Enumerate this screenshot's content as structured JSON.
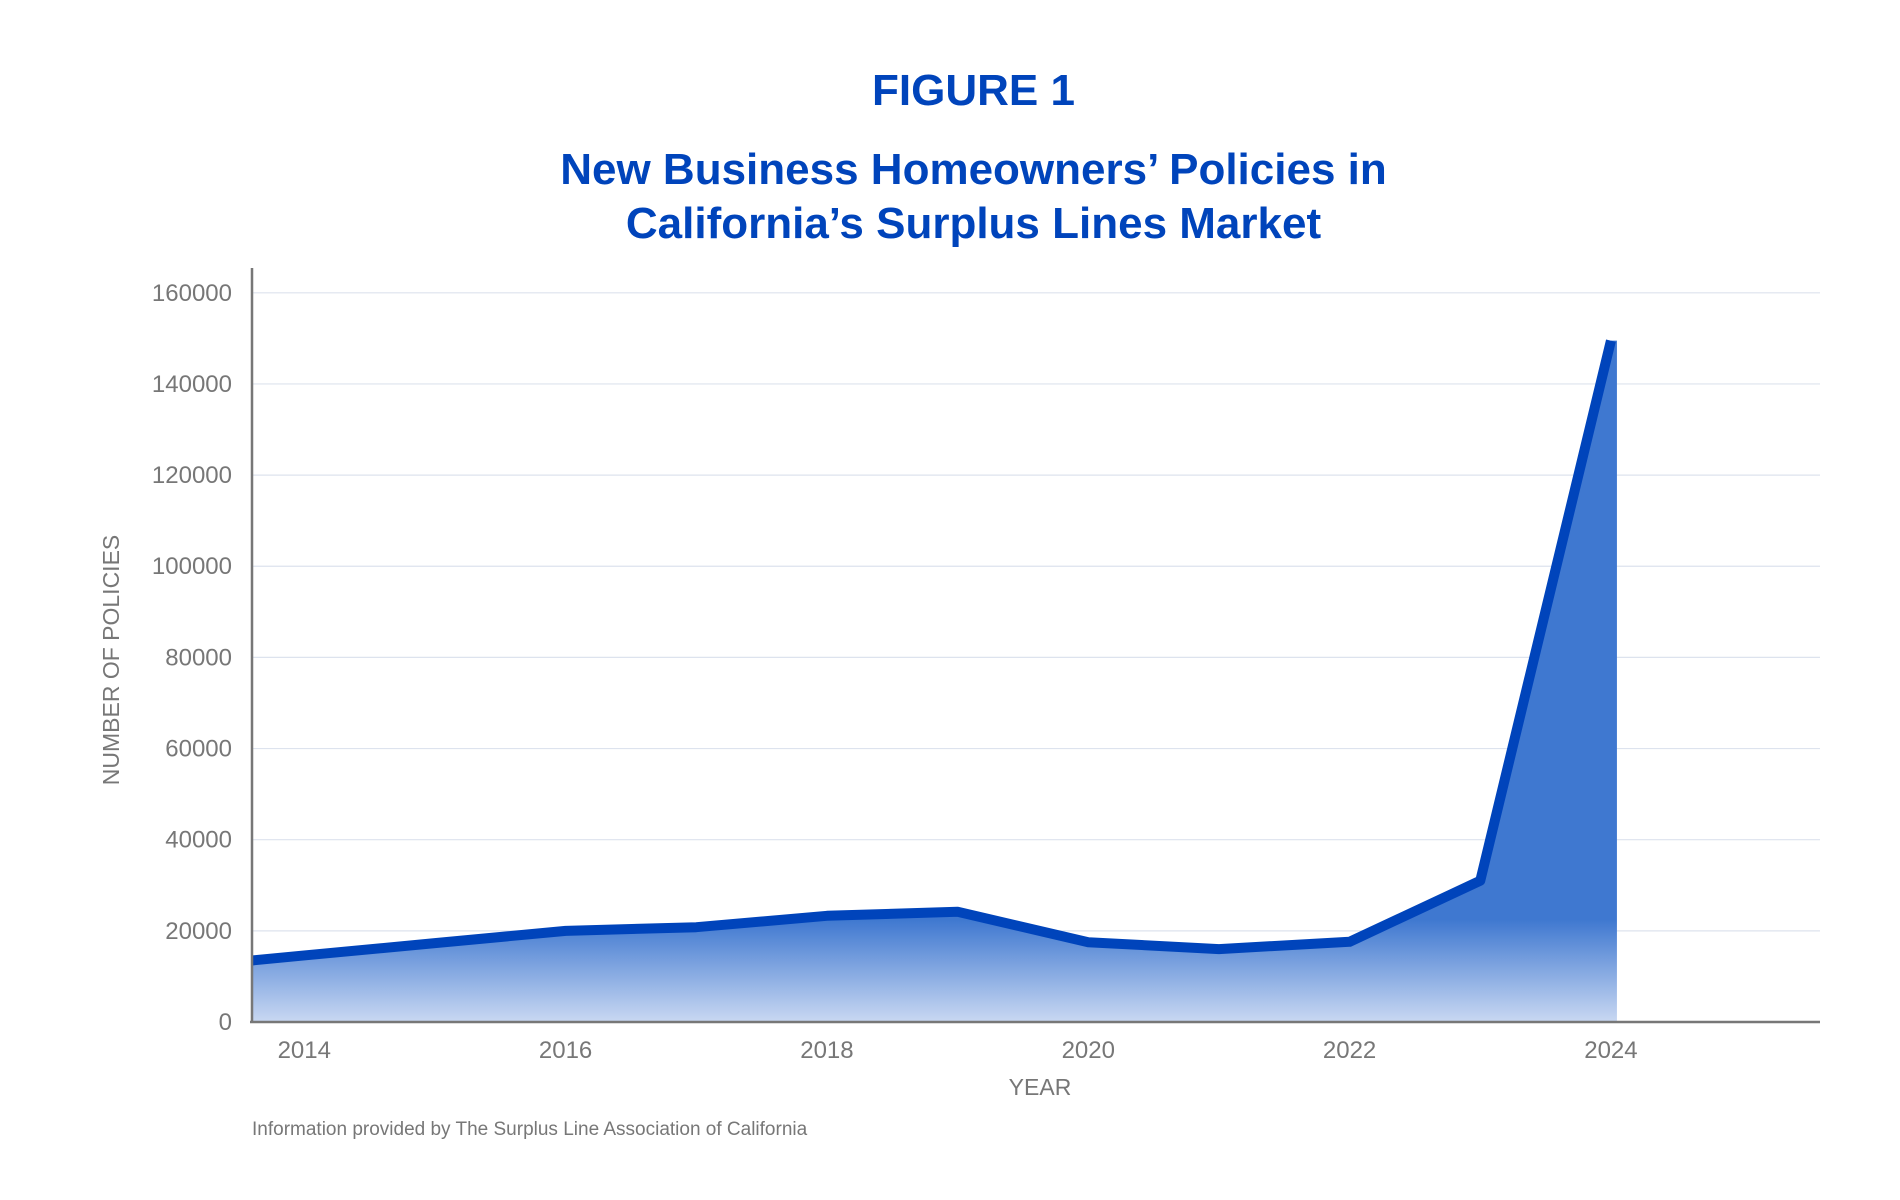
{
  "header": {
    "figure_label": "FIGURE 1",
    "title_line1": "New Business Homeowners’ Policies in",
    "title_line2": "California’s Surplus Lines Market"
  },
  "footer": {
    "source": "Information provided by The Surplus Line Association of California"
  },
  "colors": {
    "accent": "#0044bb",
    "area_fill": "#3f78d0",
    "grid": "#dde3ee",
    "axis": "#777777",
    "text": "#777777"
  },
  "chart_data": {
    "type": "area",
    "title": "New Business Homeowners’ Policies in California’s Surplus Lines Market",
    "xlabel": "YEAR",
    "ylabel": "NUMBER OF POLICIES",
    "x": [
      2013.6,
      2014,
      2015,
      2016,
      2017,
      2018,
      2019,
      2020,
      2021,
      2022,
      2023,
      2024
    ],
    "series": [
      {
        "values": [
          13500,
          14600,
          17300,
          20000,
          20800,
          23300,
          24200,
          17500,
          16000,
          17600,
          31000,
          149500
        ]
      }
    ],
    "x_ticks": [
      "2014",
      "2016",
      "2018",
      "2020",
      "2022",
      "2024"
    ],
    "y_ticks": [
      "0",
      "20000",
      "40000",
      "60000",
      "80000",
      "100000",
      "120000",
      "140000",
      "160000"
    ],
    "xlim": [
      2013.6,
      2025.6
    ],
    "ylim": [
      0,
      165000
    ],
    "grid": "horizontal",
    "legend": "none"
  }
}
